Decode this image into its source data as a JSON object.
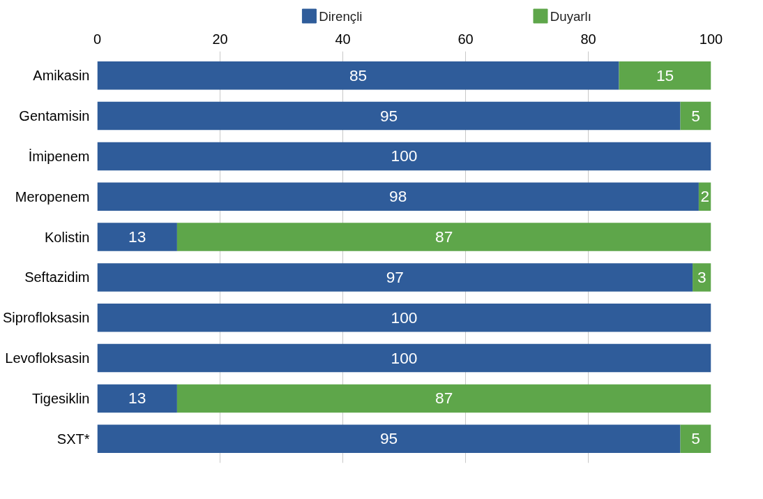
{
  "chart_data": {
    "type": "bar",
    "orientation": "horizontal",
    "stacked": true,
    "categories": [
      "Amikasin",
      "Gentamisin",
      "İmipenem",
      "Meropenem",
      "Kolistin",
      "Seftazidim",
      "Siprofloksasin",
      "Levofloksasin",
      "Tigesiklin",
      "SXT*"
    ],
    "series": [
      {
        "name": "Dirençli",
        "color": "#2f5c9a",
        "values": [
          85,
          95,
          100,
          98,
          13,
          97,
          100,
          100,
          13,
          95
        ]
      },
      {
        "name": "Duyarlı",
        "color": "#5ea64a",
        "values": [
          15,
          5,
          null,
          2,
          87,
          3,
          null,
          null,
          87,
          5
        ]
      }
    ],
    "xlim": [
      0,
      100
    ],
    "xticks": [
      0,
      20,
      40,
      60,
      80,
      100
    ],
    "grid": "x",
    "legend": "top",
    "data_labels": true
  }
}
